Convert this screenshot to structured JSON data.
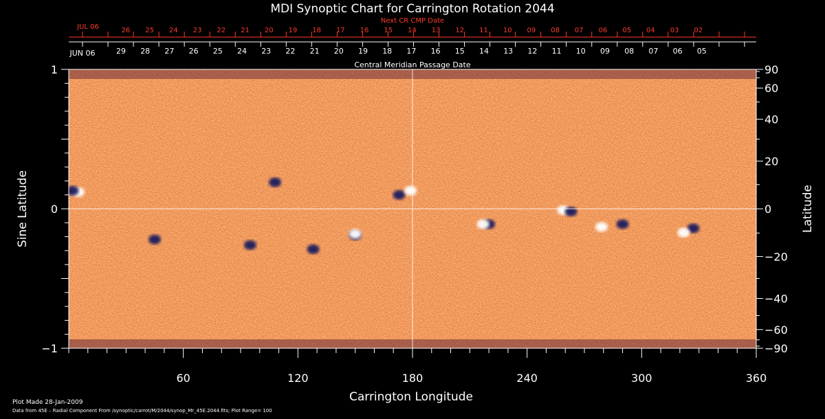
{
  "chart_data": {
    "type": "heatmap",
    "title": "MDI Synoptic Chart for Carrington Rotation 2044",
    "xlabel": "Carrington Longitude",
    "ylabel_left": "Sine Latitude",
    "ylabel_right": "Latitude",
    "xlim": [
      0,
      360
    ],
    "ylim_left": [
      -1,
      1
    ],
    "ylim_right": [
      -90,
      90
    ],
    "xticks": [
      60,
      120,
      180,
      240,
      300,
      360
    ],
    "yticks_left": [
      {
        "value": 1,
        "label": "1"
      },
      {
        "value": 0,
        "label": "0"
      },
      {
        "value": -1,
        "label": "−1"
      }
    ],
    "yticks_right": [
      90,
      60,
      40,
      20,
      0,
      -20,
      -40,
      -60,
      -90
    ],
    "yticks_right_labels": [
      "90",
      "60",
      "40",
      "20",
      "0",
      "−20",
      "−40",
      "−60",
      "−90"
    ],
    "reference_lines": {
      "x": 180,
      "y": 0
    },
    "next_cr_axis": {
      "label": "Next CR CMP Date",
      "month_label": "JUL 06",
      "dates": [
        "26",
        "25",
        "24",
        "23",
        "22",
        "21",
        "20",
        "19",
        "18",
        "17",
        "16",
        "15",
        "14",
        "13",
        "12",
        "11",
        "10",
        "09",
        "08",
        "07",
        "06",
        "05",
        "04",
        "03",
        "02"
      ]
    },
    "cmp_axis": {
      "label": "Central Meridian Passage Date",
      "month_label": "JUN 06",
      "dates": [
        "29",
        "28",
        "27",
        "26",
        "25",
        "24",
        "23",
        "22",
        "21",
        "20",
        "19",
        "18",
        "17",
        "16",
        "15",
        "14",
        "13",
        "12",
        "11",
        "10",
        "09",
        "08",
        "07",
        "06",
        "05"
      ]
    },
    "active_regions": [
      {
        "lon": 5,
        "sinlat": 0.12,
        "polarity": "positive"
      },
      {
        "lon": 2,
        "sinlat": 0.13,
        "polarity": "negative"
      },
      {
        "lon": 108,
        "sinlat": 0.19,
        "polarity": "negative"
      },
      {
        "lon": 173,
        "sinlat": 0.1,
        "polarity": "negative"
      },
      {
        "lon": 179,
        "sinlat": 0.13,
        "polarity": "positive"
      },
      {
        "lon": 45,
        "sinlat": -0.22,
        "polarity": "negative"
      },
      {
        "lon": 95,
        "sinlat": -0.26,
        "polarity": "negative"
      },
      {
        "lon": 128,
        "sinlat": -0.29,
        "polarity": "negative"
      },
      {
        "lon": 150,
        "sinlat": -0.19,
        "polarity": "negative"
      },
      {
        "lon": 150,
        "sinlat": -0.18,
        "polarity": "positive"
      },
      {
        "lon": 220,
        "sinlat": -0.11,
        "polarity": "negative"
      },
      {
        "lon": 217,
        "sinlat": -0.11,
        "polarity": "positive"
      },
      {
        "lon": 259,
        "sinlat": -0.01,
        "polarity": "positive"
      },
      {
        "lon": 263,
        "sinlat": -0.02,
        "polarity": "negative"
      },
      {
        "lon": 279,
        "sinlat": -0.13,
        "polarity": "positive"
      },
      {
        "lon": 290,
        "sinlat": -0.11,
        "polarity": "negative"
      },
      {
        "lon": 327,
        "sinlat": -0.14,
        "polarity": "negative"
      },
      {
        "lon": 322,
        "sinlat": -0.17,
        "polarity": "positive"
      }
    ],
    "colors": {
      "background_field": "#e8501e",
      "positive": "#ffffff",
      "negative": "#1a1a5e",
      "axis": "#ffffff",
      "top_axis": "#ff3a2a",
      "page": "#000000"
    }
  },
  "footer": {
    "line1": "Plot Made 28-Jan-2009",
    "line2": "Data from 45E – Radial Component From /synoptic/carrot/M/2044/synop_Mr_45E.2044.fits; Plot Range=  100"
  }
}
